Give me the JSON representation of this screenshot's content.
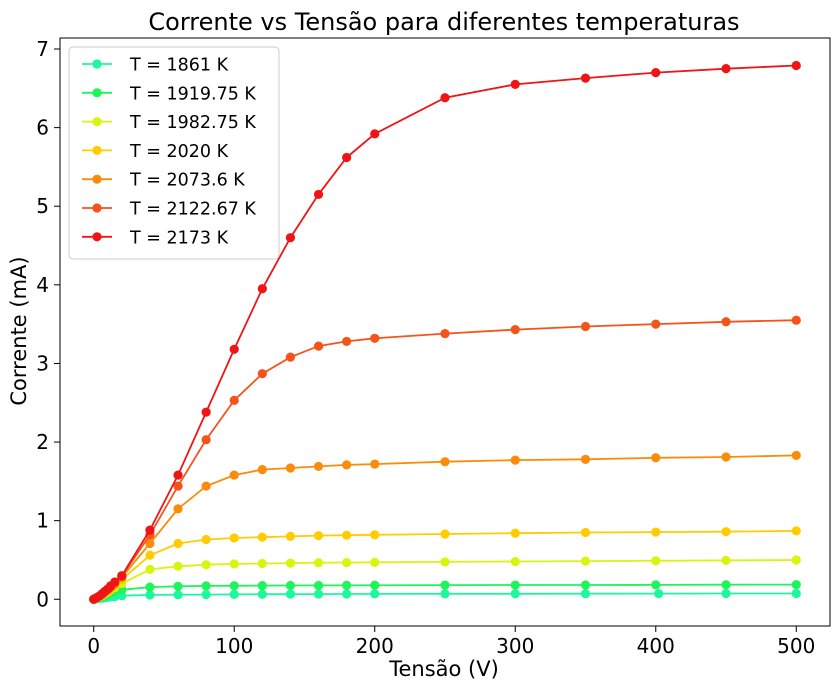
{
  "chart_data": {
    "type": "line",
    "title": "Corrente vs Tensão para diferentes temperaturas",
    "xlabel": "Tensão (V)",
    "ylabel": "Corrente (mA)",
    "xlim": [
      -24,
      524
    ],
    "ylim": [
      -0.34,
      7.14
    ],
    "xticks": [
      0,
      100,
      200,
      300,
      400,
      500
    ],
    "xtick_labels": [
      "0",
      "100",
      "200",
      "300",
      "400",
      "500"
    ],
    "yticks": [
      0,
      1,
      2,
      3,
      4,
      5,
      6,
      7
    ],
    "ytick_labels": [
      "0",
      "1",
      "2",
      "3",
      "4",
      "5",
      "6",
      "7"
    ],
    "grid": false,
    "legend_position": "top-left",
    "series": [
      {
        "name": "T = 1861 K",
        "color": "#1ef7a0",
        "x": [
          0,
          2,
          4,
          6,
          8,
          10,
          12,
          15,
          20,
          40,
          60,
          80,
          100,
          120,
          140,
          160,
          180,
          200,
          250,
          300,
          350,
          402,
          450,
          500
        ],
        "y": [
          0,
          0.005,
          0.01,
          0.015,
          0.02,
          0.025,
          0.03,
          0.035,
          0.045,
          0.055,
          0.058,
          0.06,
          0.062,
          0.064,
          0.065,
          0.066,
          0.067,
          0.068,
          0.069,
          0.07,
          0.071,
          0.072,
          0.073,
          0.074
        ]
      },
      {
        "name": "T = 1919.75 K",
        "color": "#1df55a",
        "x": [
          0,
          2,
          4,
          6,
          8,
          10,
          12,
          15,
          20,
          40,
          60,
          80,
          100,
          120,
          140,
          160,
          180,
          200,
          250,
          300,
          350,
          400,
          450,
          500
        ],
        "y": [
          0,
          0.01,
          0.02,
          0.03,
          0.045,
          0.06,
          0.08,
          0.1,
          0.12,
          0.155,
          0.165,
          0.17,
          0.172,
          0.174,
          0.175,
          0.176,
          0.177,
          0.178,
          0.18,
          0.181,
          0.182,
          0.183,
          0.185,
          0.187
        ]
      },
      {
        "name": "T = 1982.75 K",
        "color": "#d8f50f",
        "x": [
          0,
          2,
          4,
          6,
          8,
          10,
          12,
          15,
          20,
          40,
          60,
          80,
          100,
          120,
          140,
          160,
          180,
          200,
          250,
          300,
          350,
          400,
          450,
          500
        ],
        "y": [
          0,
          0.015,
          0.03,
          0.05,
          0.07,
          0.09,
          0.12,
          0.15,
          0.2,
          0.38,
          0.42,
          0.44,
          0.45,
          0.455,
          0.46,
          0.465,
          0.468,
          0.47,
          0.475,
          0.48,
          0.485,
          0.49,
          0.495,
          0.5
        ]
      },
      {
        "name": "T = 2020 K",
        "color": "#ffcc00",
        "x": [
          0,
          2,
          4,
          6,
          8,
          10,
          12,
          15,
          20,
          40,
          60,
          80,
          100,
          120,
          140,
          160,
          180,
          200,
          250,
          300,
          350,
          400,
          450,
          500
        ],
        "y": [
          0,
          0.02,
          0.04,
          0.06,
          0.08,
          0.1,
          0.13,
          0.17,
          0.25,
          0.56,
          0.71,
          0.76,
          0.78,
          0.79,
          0.8,
          0.81,
          0.815,
          0.82,
          0.83,
          0.84,
          0.85,
          0.855,
          0.86,
          0.87
        ]
      },
      {
        "name": "T = 2073.6 K",
        "color": "#fa8c0a",
        "x": [
          0,
          2,
          4,
          6,
          8,
          10,
          12,
          15,
          20,
          40,
          60,
          80,
          100,
          120,
          140,
          160,
          180,
          200,
          250,
          300,
          350,
          400,
          450,
          500
        ],
        "y": [
          0,
          0.02,
          0.04,
          0.06,
          0.09,
          0.12,
          0.15,
          0.2,
          0.28,
          0.71,
          1.15,
          1.44,
          1.58,
          1.65,
          1.67,
          1.69,
          1.71,
          1.72,
          1.75,
          1.77,
          1.78,
          1.8,
          1.81,
          1.83
        ]
      },
      {
        "name": "T = 2122.67 K",
        "color": "#f5531a",
        "x": [
          0,
          2,
          4,
          6,
          8,
          10,
          12,
          15,
          20,
          40,
          60,
          80,
          100,
          120,
          140,
          160,
          180,
          200,
          250,
          300,
          350,
          400,
          450,
          500
        ],
        "y": [
          0,
          0.02,
          0.04,
          0.07,
          0.1,
          0.13,
          0.16,
          0.21,
          0.29,
          0.82,
          1.44,
          2.03,
          2.53,
          2.87,
          3.08,
          3.22,
          3.28,
          3.32,
          3.38,
          3.43,
          3.47,
          3.5,
          3.53,
          3.55
        ]
      },
      {
        "name": "T = 2173 K",
        "color": "#f01414",
        "x": [
          0,
          2,
          4,
          6,
          8,
          10,
          12,
          15,
          20,
          40,
          60,
          80,
          100,
          120,
          140,
          160,
          180,
          200,
          250,
          300,
          350,
          400,
          450,
          500
        ],
        "y": [
          0,
          0.02,
          0.04,
          0.07,
          0.1,
          0.13,
          0.17,
          0.22,
          0.3,
          0.88,
          1.58,
          2.38,
          3.18,
          3.95,
          4.6,
          5.15,
          5.62,
          5.92,
          6.38,
          6.55,
          6.63,
          6.7,
          6.75,
          6.79
        ]
      }
    ]
  }
}
